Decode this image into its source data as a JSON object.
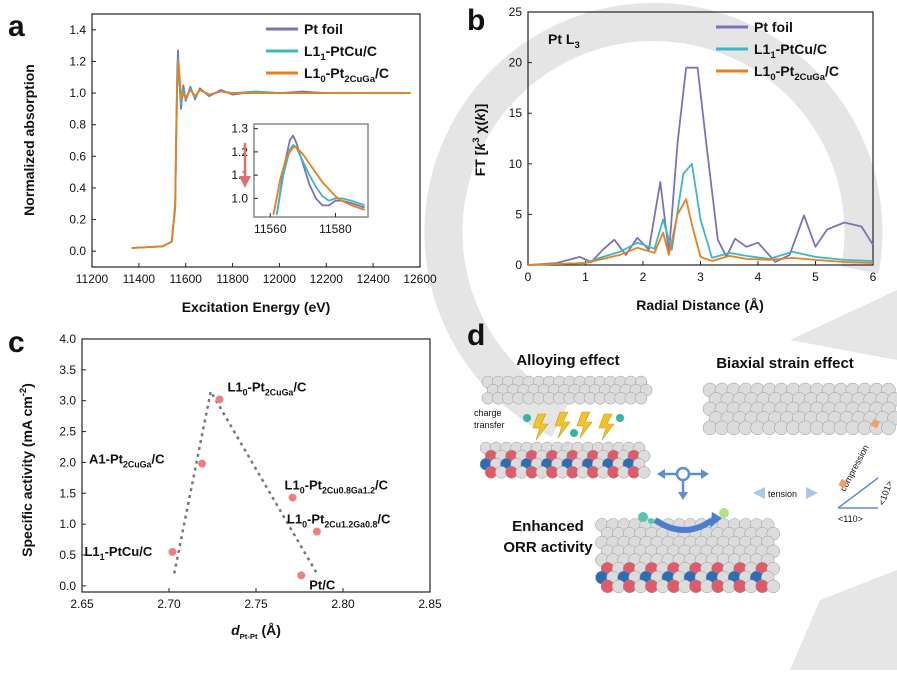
{
  "colors": {
    "pt_foil": "#7b73b8",
    "l11": "#3bb7c8",
    "l10": "#e8801c",
    "points": "#f08080",
    "dash": "#777777",
    "atom_white": "#dcdcdc",
    "atom_red": "#e05a6a",
    "atom_blue": "#2e6db4",
    "watermark": "#d9d9d9"
  },
  "chart_data": [
    {
      "panel": "a",
      "type": "line",
      "xlabel": "Excitation Energy (eV)",
      "ylabel": "Normalized absorption",
      "xlim": [
        11200,
        12600
      ],
      "ylim": [
        -0.1,
        1.5
      ],
      "xticks": [
        "11200",
        "11400",
        "11600",
        "11800",
        "12000",
        "12200",
        "12400",
        "12600"
      ],
      "yticks": [
        "0.0",
        "0.2",
        "0.4",
        "0.6",
        "0.8",
        "1.0",
        "1.2",
        "1.4"
      ],
      "legend": [
        "Pt foil",
        "L1_1-PtCu/C",
        "L1_0-Pt_2CuGa/C"
      ],
      "legend_position": "top-right",
      "series": [
        {
          "name": "Pt foil",
          "x": [
            11370,
            11500,
            11540,
            11555,
            11560,
            11564,
            11567,
            11572,
            11580,
            11590,
            11600,
            11620,
            11640,
            11660,
            11700,
            11750,
            11800,
            11900,
            12000,
            12100,
            12200,
            12300,
            12400,
            12560
          ],
          "y": [
            0.02,
            0.03,
            0.06,
            0.3,
            0.8,
            1.15,
            1.27,
            1.1,
            0.9,
            1.05,
            0.95,
            1.04,
            0.96,
            1.03,
            0.98,
            1.02,
            0.99,
            1.01,
            1.0,
            1.01,
            1.0,
            1.0,
            1.0,
            1.0
          ]
        },
        {
          "name": "L1_1-PtCu/C",
          "x": [
            11370,
            11500,
            11540,
            11555,
            11560,
            11564,
            11568,
            11573,
            11580,
            11590,
            11600,
            11620,
            11640,
            11660,
            11700,
            11750,
            11800,
            11900,
            12000,
            12100,
            12200,
            12300,
            12400,
            12560
          ],
          "y": [
            0.02,
            0.03,
            0.06,
            0.28,
            0.75,
            1.1,
            1.22,
            1.08,
            0.93,
            1.02,
            0.96,
            1.03,
            0.97,
            1.02,
            0.99,
            1.01,
            1.0,
            1.01,
            1.0,
            1.0,
            1.0,
            1.0,
            1.0,
            1.0
          ]
        },
        {
          "name": "L1_0-Pt_2CuGa/C",
          "x": [
            11370,
            11500,
            11540,
            11555,
            11560,
            11564,
            11569,
            11574,
            11582,
            11592,
            11600,
            11620,
            11640,
            11660,
            11700,
            11750,
            11800,
            11900,
            12000,
            12100,
            12200,
            12300,
            12400,
            12560
          ],
          "y": [
            0.02,
            0.03,
            0.06,
            0.27,
            0.72,
            1.05,
            1.2,
            1.1,
            0.96,
            1.0,
            0.97,
            1.02,
            0.98,
            1.02,
            0.99,
            1.01,
            1.0,
            1.0,
            1.0,
            1.0,
            1.0,
            1.0,
            1.0,
            1.0
          ]
        }
      ],
      "inset": {
        "xlim": [
          11555,
          11590
        ],
        "ylim": [
          0.92,
          1.32
        ],
        "xticks": [
          "11560",
          "11580"
        ],
        "yticks": [
          "1.0",
          "1.1",
          "1.2",
          "1.3"
        ],
        "series": [
          {
            "name": "Pt foil",
            "x": [
              11562,
              11564,
              11566,
              11567,
              11568,
              11570,
              11572,
              11574,
              11576,
              11578,
              11580,
              11582,
              11585,
              11589
            ],
            "y": [
              0.93,
              1.12,
              1.25,
              1.27,
              1.24,
              1.15,
              1.06,
              1.0,
              0.97,
              0.97,
              0.99,
              0.99,
              0.98,
              0.96
            ]
          },
          {
            "name": "L1_1-PtCu/C",
            "x": [
              11562,
              11564,
              11566,
              11567,
              11568,
              11570,
              11572,
              11574,
              11576,
              11578,
              11580,
              11582,
              11585,
              11589
            ],
            "y": [
              0.93,
              1.1,
              1.21,
              1.23,
              1.22,
              1.16,
              1.1,
              1.05,
              1.01,
              0.99,
              1.0,
              1.0,
              0.99,
              0.97
            ]
          },
          {
            "name": "L1_0-Pt_2CuGa/C",
            "x": [
              11561,
              11563,
              11565,
              11567,
              11568,
              11570,
              11572,
              11574,
              11576,
              11578,
              11580,
              11582,
              11585,
              11589
            ],
            "y": [
              0.93,
              1.08,
              1.18,
              1.22,
              1.22,
              1.19,
              1.15,
              1.11,
              1.07,
              1.04,
              1.01,
              0.99,
              0.97,
              0.95
            ]
          }
        ]
      }
    },
    {
      "panel": "b",
      "type": "line",
      "annotation": "Pt L_3",
      "xlabel": "Radial Distance (Å)",
      "ylabel": "FT [k^3 χ(k)]",
      "xlim": [
        0,
        6
      ],
      "ylim": [
        0,
        25
      ],
      "xticks": [
        "0",
        "1",
        "2",
        "3",
        "4",
        "5",
        "6"
      ],
      "yticks": [
        "0",
        "5",
        "10",
        "15",
        "20",
        "25"
      ],
      "legend": [
        "Pt foil",
        "L1_1-PtCu/C",
        "L1_0-Pt_2CuGa/C"
      ],
      "legend_position": "top-right",
      "series": [
        {
          "name": "Pt foil",
          "x": [
            0,
            0.5,
            0.9,
            1.1,
            1.3,
            1.5,
            1.7,
            1.9,
            2.1,
            2.3,
            2.45,
            2.6,
            2.75,
            2.95,
            3.1,
            3.3,
            3.45,
            3.6,
            3.8,
            4.0,
            4.3,
            4.55,
            4.8,
            5.0,
            5.2,
            5.5,
            5.8,
            6.0
          ],
          "y": [
            0,
            0.2,
            0.8,
            0.3,
            1.5,
            2.5,
            1.0,
            2.7,
            1.5,
            8.2,
            1.2,
            12.0,
            19.5,
            19.5,
            12.0,
            2.5,
            0.8,
            2.6,
            1.8,
            2.2,
            0.3,
            1.0,
            4.9,
            1.8,
            3.5,
            4.2,
            3.8,
            2.0
          ]
        },
        {
          "name": "L1_1-PtCu/C",
          "x": [
            0,
            0.5,
            1.0,
            1.3,
            1.6,
            1.9,
            2.2,
            2.35,
            2.5,
            2.7,
            2.85,
            3.0,
            3.2,
            3.5,
            3.8,
            4.2,
            4.6,
            5.0,
            5.5,
            6.0
          ],
          "y": [
            0,
            0.1,
            0.2,
            0.8,
            1.3,
            2.2,
            1.6,
            4.5,
            1.5,
            9.0,
            10.0,
            4.5,
            0.7,
            1.2,
            0.9,
            0.6,
            1.3,
            0.8,
            0.5,
            0.4
          ]
        },
        {
          "name": "L1_0-Pt_2CuGa/C",
          "x": [
            0,
            0.5,
            1.0,
            1.3,
            1.6,
            1.9,
            2.2,
            2.35,
            2.45,
            2.6,
            2.75,
            2.85,
            3.0,
            3.2,
            3.5,
            3.8,
            4.2,
            4.6,
            5.0,
            5.5,
            6.0
          ],
          "y": [
            0,
            0.1,
            0.2,
            0.6,
            1.0,
            1.7,
            1.2,
            3.2,
            1.0,
            5.0,
            6.5,
            4.0,
            0.8,
            0.4,
            0.9,
            0.6,
            0.5,
            0.7,
            0.5,
            0.3,
            0.2
          ]
        }
      ]
    },
    {
      "panel": "c",
      "type": "scatter",
      "xlabel": "d_Pt-Pt (Å)",
      "ylabel": "Specific activity (mA cm^-2)",
      "xlim": [
        2.65,
        2.85
      ],
      "ylim": [
        -0.1,
        4.0
      ],
      "xticks": [
        "2.65",
        "2.70",
        "2.75",
        "2.80",
        "2.85"
      ],
      "yticks": [
        "0.0",
        "0.5",
        "1.0",
        "1.5",
        "2.0",
        "2.5",
        "3.0",
        "3.5",
        "4.0"
      ],
      "points": [
        {
          "label": "L1_1-PtCu/C",
          "x": 2.702,
          "y": 0.55
        },
        {
          "label": "A1-Pt_2CuGa/C",
          "x": 2.719,
          "y": 1.98
        },
        {
          "label": "L1_0-Pt_2CuGa/C",
          "x": 2.729,
          "y": 3.02
        },
        {
          "label": "L1_0-Pt_2Cu_0.8Ga_1.2/C",
          "x": 2.771,
          "y": 1.43
        },
        {
          "label": "L1_0-Pt_2Cu_1.2Ga_0.8/C",
          "x": 2.785,
          "y": 0.88
        },
        {
          "label": "Pt/C",
          "x": 2.776,
          "y": 0.17
        }
      ],
      "trend_line": {
        "x": [
          2.703,
          2.724,
          2.785
        ],
        "y": [
          0.2,
          3.15,
          0.2
        ]
      }
    }
  ],
  "panels": {
    "a": "a",
    "b": "b",
    "c": "c",
    "d": "d"
  },
  "panel_d": {
    "alloying_title": "Alloying effect",
    "strain_title": "Biaxial strain  effect",
    "orr_title_1": "Enhanced",
    "orr_title_2": "ORR activity",
    "charge_1": "charge",
    "charge_2": "transfer",
    "tension": "tension",
    "compression": "compression",
    "dir_110": "<110>",
    "dir_101": "<101>"
  }
}
